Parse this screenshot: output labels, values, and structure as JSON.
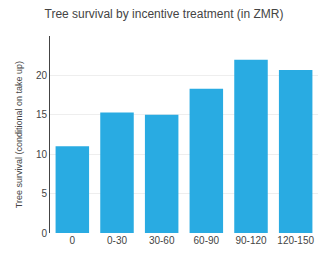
{
  "chart_data": {
    "type": "bar",
    "title": "Tree survival by incentive treatment (in ZMR)",
    "ylabel": "Tree survival (conditional on take up)",
    "categories": [
      "0",
      "0-30",
      "30-60",
      "60-90",
      "90-120",
      "120-150"
    ],
    "values": [
      11.0,
      15.3,
      15.0,
      18.3,
      22.0,
      20.7
    ],
    "color": "#29ABE2",
    "ylim": [
      0,
      25
    ],
    "yticks": [
      0,
      5,
      10,
      15,
      20
    ],
    "grid": true
  }
}
